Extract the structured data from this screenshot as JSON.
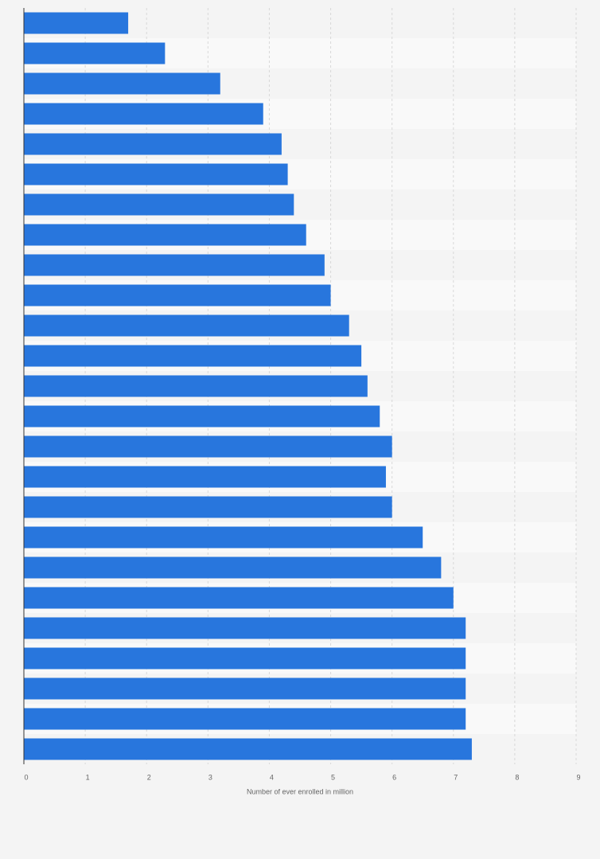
{
  "chart_data": {
    "type": "bar",
    "orientation": "horizontal",
    "x_label": "Number of ever enrolled in million",
    "categories": [
      null,
      null,
      null,
      null,
      null,
      null,
      null,
      null,
      null,
      null,
      null,
      null,
      null,
      null,
      null,
      null,
      null,
      null,
      null,
      null,
      null,
      null,
      null,
      null,
      null
    ],
    "values": [
      1.7,
      2.3,
      3.2,
      3.9,
      4.2,
      4.3,
      4.4,
      4.6,
      4.9,
      5.0,
      5.3,
      5.5,
      5.6,
      5.8,
      6.0,
      5.9,
      6.0,
      6.5,
      6.8,
      7.0,
      7.2,
      7.2,
      7.2,
      7.2,
      7.3
    ],
    "color": "#2876dd",
    "xlim": [
      0,
      9
    ],
    "xticks": [
      0,
      1,
      2,
      3,
      4,
      5,
      6,
      7,
      8,
      9
    ],
    "grid": true
  }
}
